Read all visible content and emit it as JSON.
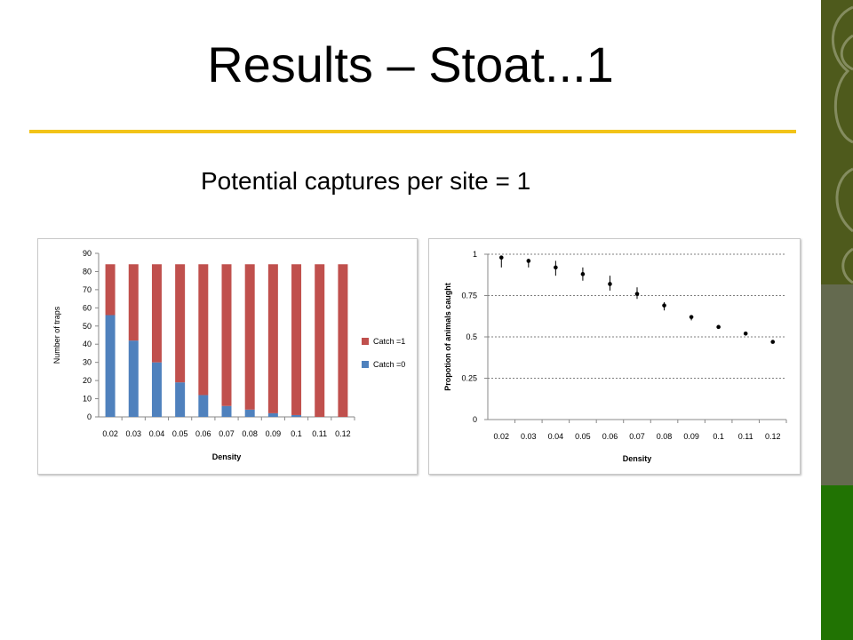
{
  "slide": {
    "title": "Results – Stoat...1",
    "subtitle": "Potential captures per site =  1",
    "colors": {
      "rule": "#f2c318",
      "sidebar_top": "#4e5a1c",
      "sidebar_mid": "#646a4f",
      "sidebar_bottom": "#217303"
    }
  },
  "chart_data": [
    {
      "type": "bar",
      "stacked": true,
      "categories": [
        "0.02",
        "0.03",
        "0.04",
        "0.05",
        "0.06",
        "0.07",
        "0.08",
        "0.09",
        "0.1",
        "0.11",
        "0.12"
      ],
      "series": [
        {
          "name": "Catch =0",
          "color": "#4f81bd",
          "values": [
            56,
            42,
            30,
            19,
            12,
            6,
            4,
            2,
            1,
            0,
            0
          ]
        },
        {
          "name": "Catch =1",
          "color": "#c0504d",
          "values": [
            28,
            42,
            54,
            65,
            72,
            78,
            80,
            82,
            83,
            84,
            84
          ]
        }
      ],
      "xlabel": "Density",
      "ylabel": "Number of traps",
      "ylim": [
        0,
        90
      ],
      "yticks": [
        "0",
        "10",
        "20",
        "30",
        "40",
        "50",
        "60",
        "70",
        "80",
        "90"
      ],
      "legend": "right",
      "legend_entries": [
        "Catch =1",
        "Catch =0"
      ]
    },
    {
      "type": "scatter",
      "error_bars": true,
      "categories": [
        "0.02",
        "0.03",
        "0.04",
        "0.05",
        "0.06",
        "0.07",
        "0.08",
        "0.09",
        "0.1",
        "0.11",
        "0.12"
      ],
      "values": [
        0.98,
        0.96,
        0.92,
        0.88,
        0.82,
        0.76,
        0.69,
        0.62,
        0.56,
        0.52,
        0.47
      ],
      "err_low": [
        0.06,
        0.04,
        0.05,
        0.04,
        0.04,
        0.03,
        0.03,
        0.02,
        0.01,
        0.01,
        0.01
      ],
      "err_high": [
        0.01,
        0.01,
        0.04,
        0.04,
        0.05,
        0.04,
        0.02,
        0.01,
        0.0,
        0.0,
        0.0
      ],
      "xlabel": "Density",
      "ylabel": "Propotion of animals caught",
      "ylim": [
        0,
        1
      ],
      "yticks": [
        "0",
        "0.25",
        "0.5",
        "0.75",
        "1"
      ],
      "grid": "horizontal dashed"
    }
  ]
}
